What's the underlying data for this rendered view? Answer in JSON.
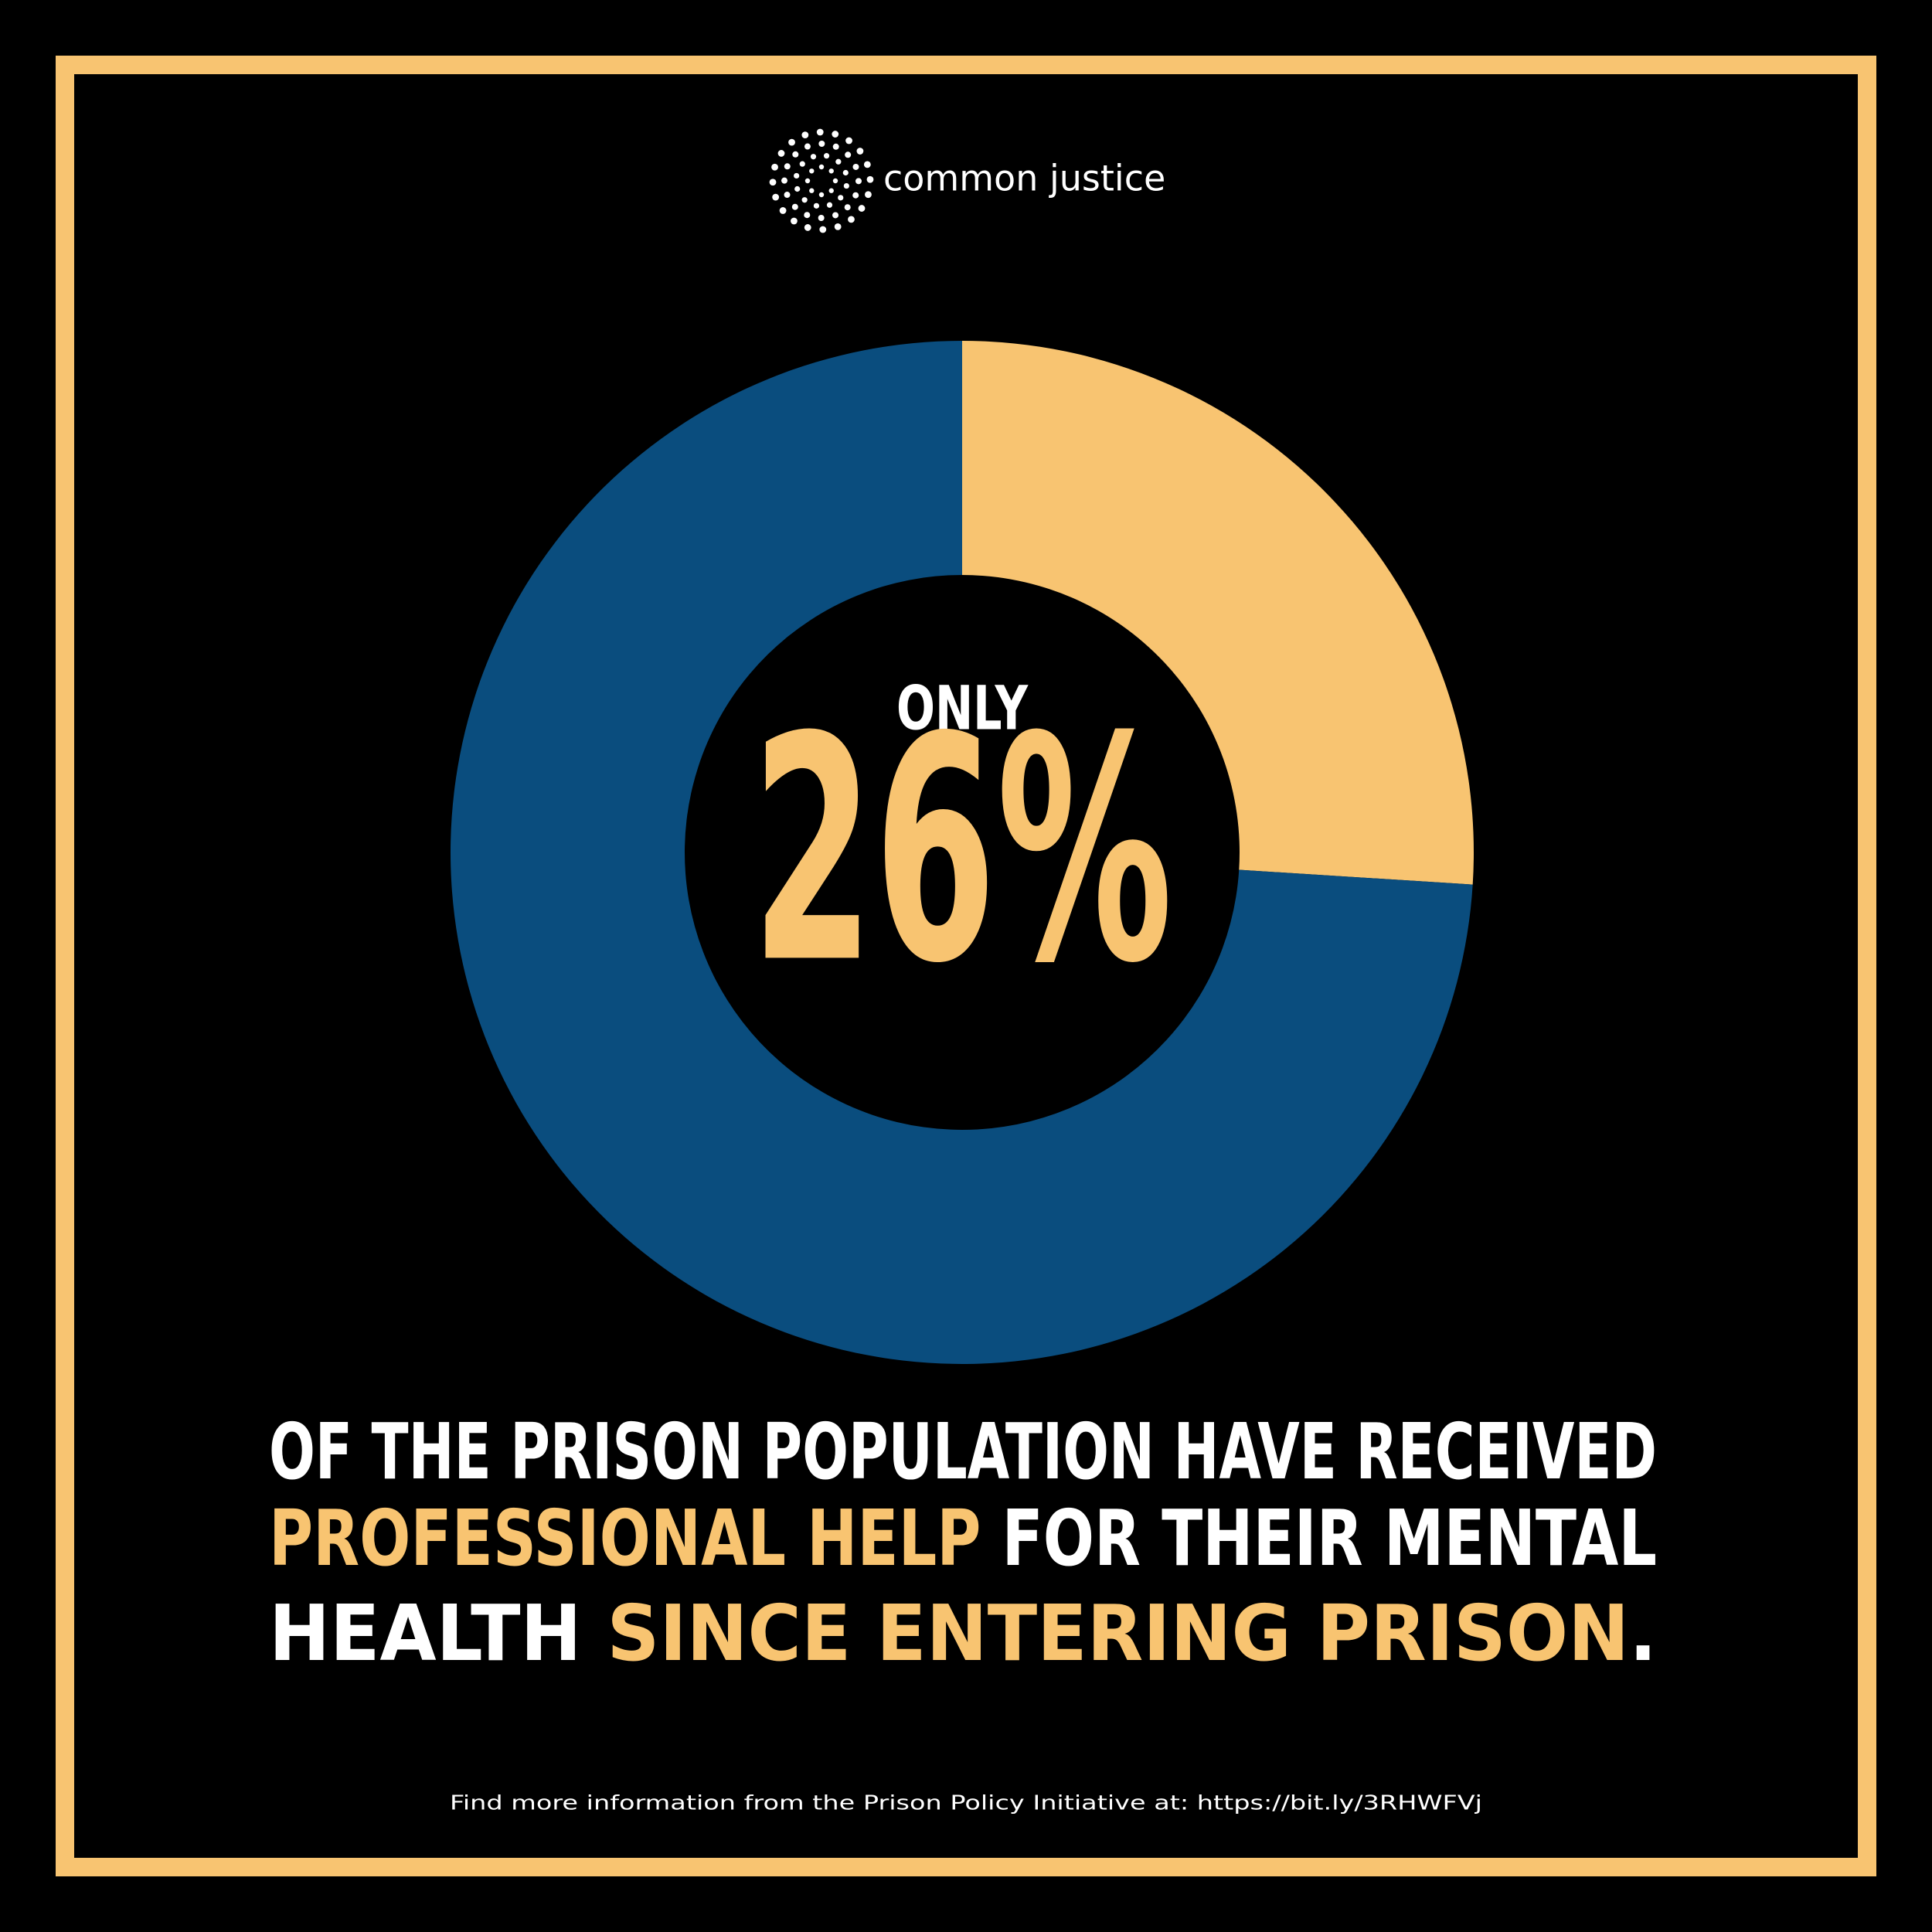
{
  "chart_data": {
    "type": "donut",
    "logo_text": "common justice",
    "values": [
      26,
      74
    ],
    "value_labels": [
      "26%",
      null
    ],
    "colors": [
      "#f8c471",
      "#0a4d7e"
    ],
    "center_prefix": "ONLY",
    "caption_lines": [
      [
        {
          "text": "OF THE PRISON POPULATION HAVE RECEIVED",
          "color": "#ffffff"
        }
      ],
      [
        {
          "text": "PROFESSIONAL HELP",
          "color": "#f8c471"
        },
        {
          "text": " FOR THEIR MENTAL",
          "color": "#ffffff"
        }
      ],
      [
        {
          "text": "HEALTH ",
          "color": "#ffffff"
        },
        {
          "text": "SINCE ENTERING PRISON",
          "color": "#f8c471"
        },
        {
          "text": ".",
          "color": "#ffffff"
        }
      ]
    ],
    "footer": "Find more information from the Prison Policy Initiative at: https://bit.ly/3RHWFVj"
  }
}
